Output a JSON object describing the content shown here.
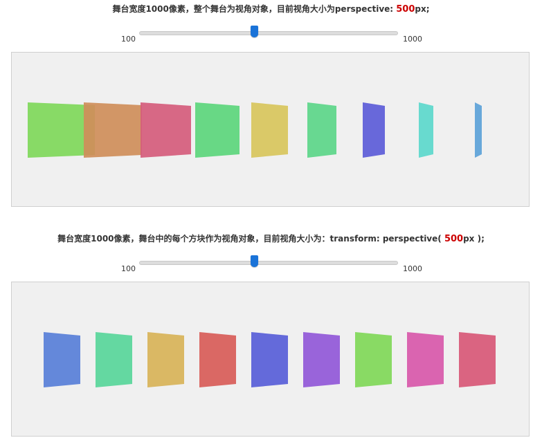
{
  "demo1": {
    "title_prefix": "舞台宽度1000像素，整个舞台为视角对象，目前视角大小为perspective: ",
    "value": "500",
    "title_suffix": "px;",
    "slider_min": "100",
    "slider_max": "1000",
    "slider_value": 500,
    "blocks": [
      {
        "color": "#7fd85a"
      },
      {
        "color": "#cf8e5a"
      },
      {
        "color": "#d55c7c"
      },
      {
        "color": "#5cd67c"
      },
      {
        "color": "#d8c65c"
      },
      {
        "color": "#5cd689"
      },
      {
        "color": "#5c5cd8"
      },
      {
        "color": "#5cd8cc"
      },
      {
        "color": "#5ca2d8"
      }
    ]
  },
  "demo2": {
    "title_prefix": "舞台宽度1000像素，舞台中的每个方块作为视角对象，目前视角大小为：transform: perspective( ",
    "value": "500",
    "title_suffix": "px );",
    "slider_min": "100",
    "slider_max": "1000",
    "slider_value": 500,
    "blocks": [
      {
        "color": "#5c82d8"
      },
      {
        "color": "#5cd69c"
      },
      {
        "color": "#d8b45c"
      },
      {
        "color": "#d8605c"
      },
      {
        "color": "#5c62d8"
      },
      {
        "color": "#935cd8"
      },
      {
        "color": "#83d85c"
      },
      {
        "color": "#d85cac"
      },
      {
        "color": "#d85c7a"
      }
    ]
  }
}
